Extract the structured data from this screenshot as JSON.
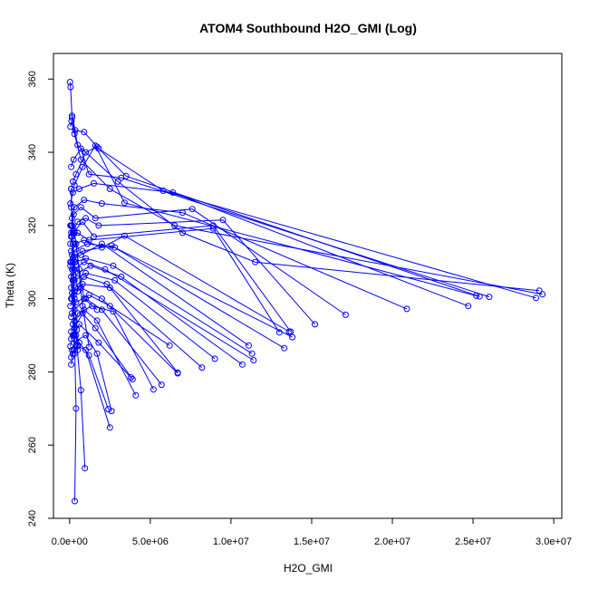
{
  "chart_data": {
    "type": "line",
    "title": "ATOM4 Southbound H2O_GMI (Log)",
    "xlabel": "H2O_GMI",
    "ylabel": "Theta (K)",
    "xlim": [
      -1000000,
      30500000
    ],
    "ylim": [
      240,
      367
    ],
    "xticks": [
      0,
      5000000,
      10000000,
      15000000,
      20000000,
      25000000,
      30000000
    ],
    "xtick_labels": [
      "0.0e+00",
      "5.0e+06",
      "1.0e+07",
      "1.5e+07",
      "2.0e+07",
      "2.5e+07",
      "3.0e+07"
    ],
    "yticks": [
      240,
      260,
      280,
      300,
      320,
      340,
      360
    ],
    "ytick_labels": [
      "240",
      "260",
      "280",
      "300",
      "320",
      "340",
      "360"
    ],
    "grid": false,
    "color": "#0000ff",
    "series": [
      {
        "x": [
          30000,
          60000,
          150000,
          500000,
          3000000,
          7000000,
          11500000,
          29100000
        ],
        "y": [
          359.2,
          357.8,
          349.5,
          342.0,
          332.0,
          318.0,
          310.0,
          302.2
        ]
      },
      {
        "x": [
          50000,
          120000,
          300000,
          700000,
          2500000,
          6500000,
          29300000
        ],
        "y": [
          347.0,
          348.5,
          345.0,
          338.0,
          330.0,
          320.0,
          301.2
        ]
      },
      {
        "x": [
          150000,
          350000,
          900000,
          1800000,
          5800000,
          28900000
        ],
        "y": [
          350.0,
          346.0,
          345.5,
          341.0,
          329.5,
          300.2
        ]
      },
      {
        "x": [
          100000,
          250000,
          700000,
          1200000,
          3200000,
          26000000
        ],
        "y": [
          336.0,
          338.0,
          341.0,
          334.0,
          333.0,
          300.5
        ]
      },
      {
        "x": [
          200000,
          400000,
          1000000,
          1700000,
          3500000,
          25400000
        ],
        "y": [
          332.0,
          334.0,
          340.0,
          341.5,
          333.5,
          300.6
        ]
      },
      {
        "x": [
          100000,
          300000,
          800000,
          1600000,
          3400000,
          25200000
        ],
        "y": [
          330.0,
          331.0,
          336.0,
          341.8,
          326.2,
          300.8
        ]
      },
      {
        "x": [
          50000,
          200000,
          600000,
          1500000,
          6400000,
          24700000
        ],
        "y": [
          326.0,
          329.0,
          330.0,
          331.5,
          329.0,
          298.0
        ]
      },
      {
        "x": [
          150000,
          300000,
          900000,
          2000000,
          7000000,
          20900000
        ],
        "y": [
          322.0,
          325.0,
          327.0,
          326.0,
          323.5,
          297.2
        ]
      },
      {
        "x": [
          100000,
          250000,
          700000,
          1600000,
          7600000,
          17100000
        ],
        "y": [
          320.0,
          323.0,
          325.0,
          322.0,
          324.5,
          295.6
        ]
      },
      {
        "x": [
          200000,
          500000,
          1000000,
          1800000,
          9500000,
          15200000
        ],
        "y": [
          318.0,
          321.0,
          322.0,
          320.0,
          321.5,
          293.0
        ]
      },
      {
        "x": [
          100000,
          300000,
          800000,
          1500000,
          8900000,
          13700000
        ],
        "y": [
          317.0,
          318.5,
          321.0,
          317.0,
          320.0,
          291.0
        ]
      },
      {
        "x": [
          50000,
          150000,
          500000,
          1200000,
          8900000,
          13000000
        ],
        "y": [
          315.0,
          317.0,
          318.0,
          316.0,
          319.2,
          290.8
        ]
      },
      {
        "x": [
          100000,
          300000,
          900000,
          2000000,
          3400000,
          13600000
        ],
        "y": [
          313.0,
          315.0,
          316.0,
          314.0,
          317.2,
          291.0
        ]
      },
      {
        "x": [
          150000,
          400000,
          1100000,
          2800000,
          13800000
        ],
        "y": [
          312.0,
          313.5,
          315.0,
          314.0,
          289.5
        ]
      },
      {
        "x": [
          100000,
          250000,
          800000,
          2600000,
          13300000
        ],
        "y": [
          310.0,
          311.5,
          313.0,
          314.5,
          286.5
        ]
      },
      {
        "x": [
          50000,
          200000,
          700000,
          2000000,
          11100000
        ],
        "y": [
          309.0,
          311.0,
          312.0,
          315.0,
          287.2
        ]
      },
      {
        "x": [
          150000,
          350000,
          1000000,
          2700000,
          11300000
        ],
        "y": [
          308.0,
          310.0,
          311.0,
          309.0,
          285.0
        ]
      },
      {
        "x": [
          100000,
          300000,
          900000,
          2200000,
          11400000
        ],
        "y": [
          306.0,
          308.0,
          310.0,
          308.0,
          283.2
        ]
      },
      {
        "x": [
          200000,
          500000,
          1300000,
          3200000,
          10700000
        ],
        "y": [
          305.0,
          307.0,
          309.0,
          306.0,
          282.0
        ]
      },
      {
        "x": [
          100000,
          300000,
          1000000,
          2800000,
          9000000
        ],
        "y": [
          303.0,
          305.0,
          307.0,
          305.0,
          283.6
        ]
      },
      {
        "x": [
          150000,
          350000,
          900000,
          2300000,
          8200000
        ],
        "y": [
          301.5,
          303.0,
          306.0,
          304.0,
          281.2
        ]
      },
      {
        "x": [
          100000,
          300000,
          800000,
          2500000,
          6700000
        ],
        "y": [
          300.0,
          302.0,
          304.0,
          303.0,
          279.8
        ]
      },
      {
        "x": [
          50000,
          250000,
          700000,
          2000000,
          6700000
        ],
        "y": [
          298.0,
          301.0,
          303.0,
          300.0,
          279.6
        ]
      },
      {
        "x": [
          150000,
          400000,
          1200000,
          2500000,
          6200000
        ],
        "y": [
          296.0,
          299.0,
          301.0,
          298.0,
          287.2
        ]
      },
      {
        "x": [
          100000,
          300000,
          1000000,
          2000000,
          5700000
        ],
        "y": [
          295.0,
          297.0,
          300.0,
          297.0,
          276.5
        ]
      },
      {
        "x": [
          200000,
          500000,
          1400000,
          2700000,
          5200000
        ],
        "y": [
          293.0,
          296.0,
          298.0,
          296.5,
          275.2
        ]
      },
      {
        "x": [
          100000,
          300000,
          900000,
          1700000,
          4100000
        ],
        "y": [
          291.0,
          294.0,
          297.0,
          294.0,
          273.6
        ]
      },
      {
        "x": [
          100000,
          300000,
          800000,
          1600000,
          3900000
        ],
        "y": [
          289.0,
          292.0,
          296.0,
          292.0,
          278.0
        ]
      },
      {
        "x": [
          50000,
          200000,
          600000,
          1800000,
          3800000
        ],
        "y": [
          287.0,
          290.0,
          293.0,
          288.0,
          278.5
        ]
      },
      {
        "x": [
          150000,
          400000,
          1000000,
          1700000,
          2600000
        ],
        "y": [
          286.0,
          288.5,
          290.0,
          285.0,
          269.3
        ]
      },
      {
        "x": [
          100000,
          250000,
          600000,
          1200000,
          2400000
        ],
        "y": [
          284.0,
          286.0,
          288.0,
          284.5,
          269.8
        ]
      },
      {
        "x": [
          100000,
          200000,
          500000,
          1000000,
          2500000
        ],
        "y": [
          282.0,
          285.0,
          287.0,
          286.0,
          264.8
        ]
      },
      {
        "x": [
          50000,
          150000,
          400000,
          700000,
          950000
        ],
        "y": [
          310.0,
          300.0,
          290.0,
          275.0,
          253.7
        ]
      },
      {
        "x": [
          100000,
          200000,
          300000,
          400000,
          320000
        ],
        "y": [
          330.0,
          310.0,
          290.0,
          270.0,
          244.7
        ]
      },
      {
        "x": [
          150000,
          200000,
          250000,
          300000
        ],
        "y": [
          320.0,
          305.0,
          290.2,
          285.0
        ]
      },
      {
        "x": [
          200000,
          300000,
          450000,
          500000
        ],
        "y": [
          315.0,
          300.0,
          291.5,
          286.0
        ]
      },
      {
        "x": [
          100000,
          400000,
          800000,
          1200000
        ],
        "y": [
          325.0,
          315.0,
          298.0,
          286.8
        ]
      },
      {
        "x": [
          300000,
          600000,
          900000,
          1700000
        ],
        "y": [
          318.0,
          308.0,
          300.0,
          297.0
        ]
      },
      {
        "x": [
          50000,
          100000,
          300000,
          500000
        ],
        "y": [
          320.0,
          318.0,
          310.0,
          302.0
        ]
      }
    ]
  }
}
